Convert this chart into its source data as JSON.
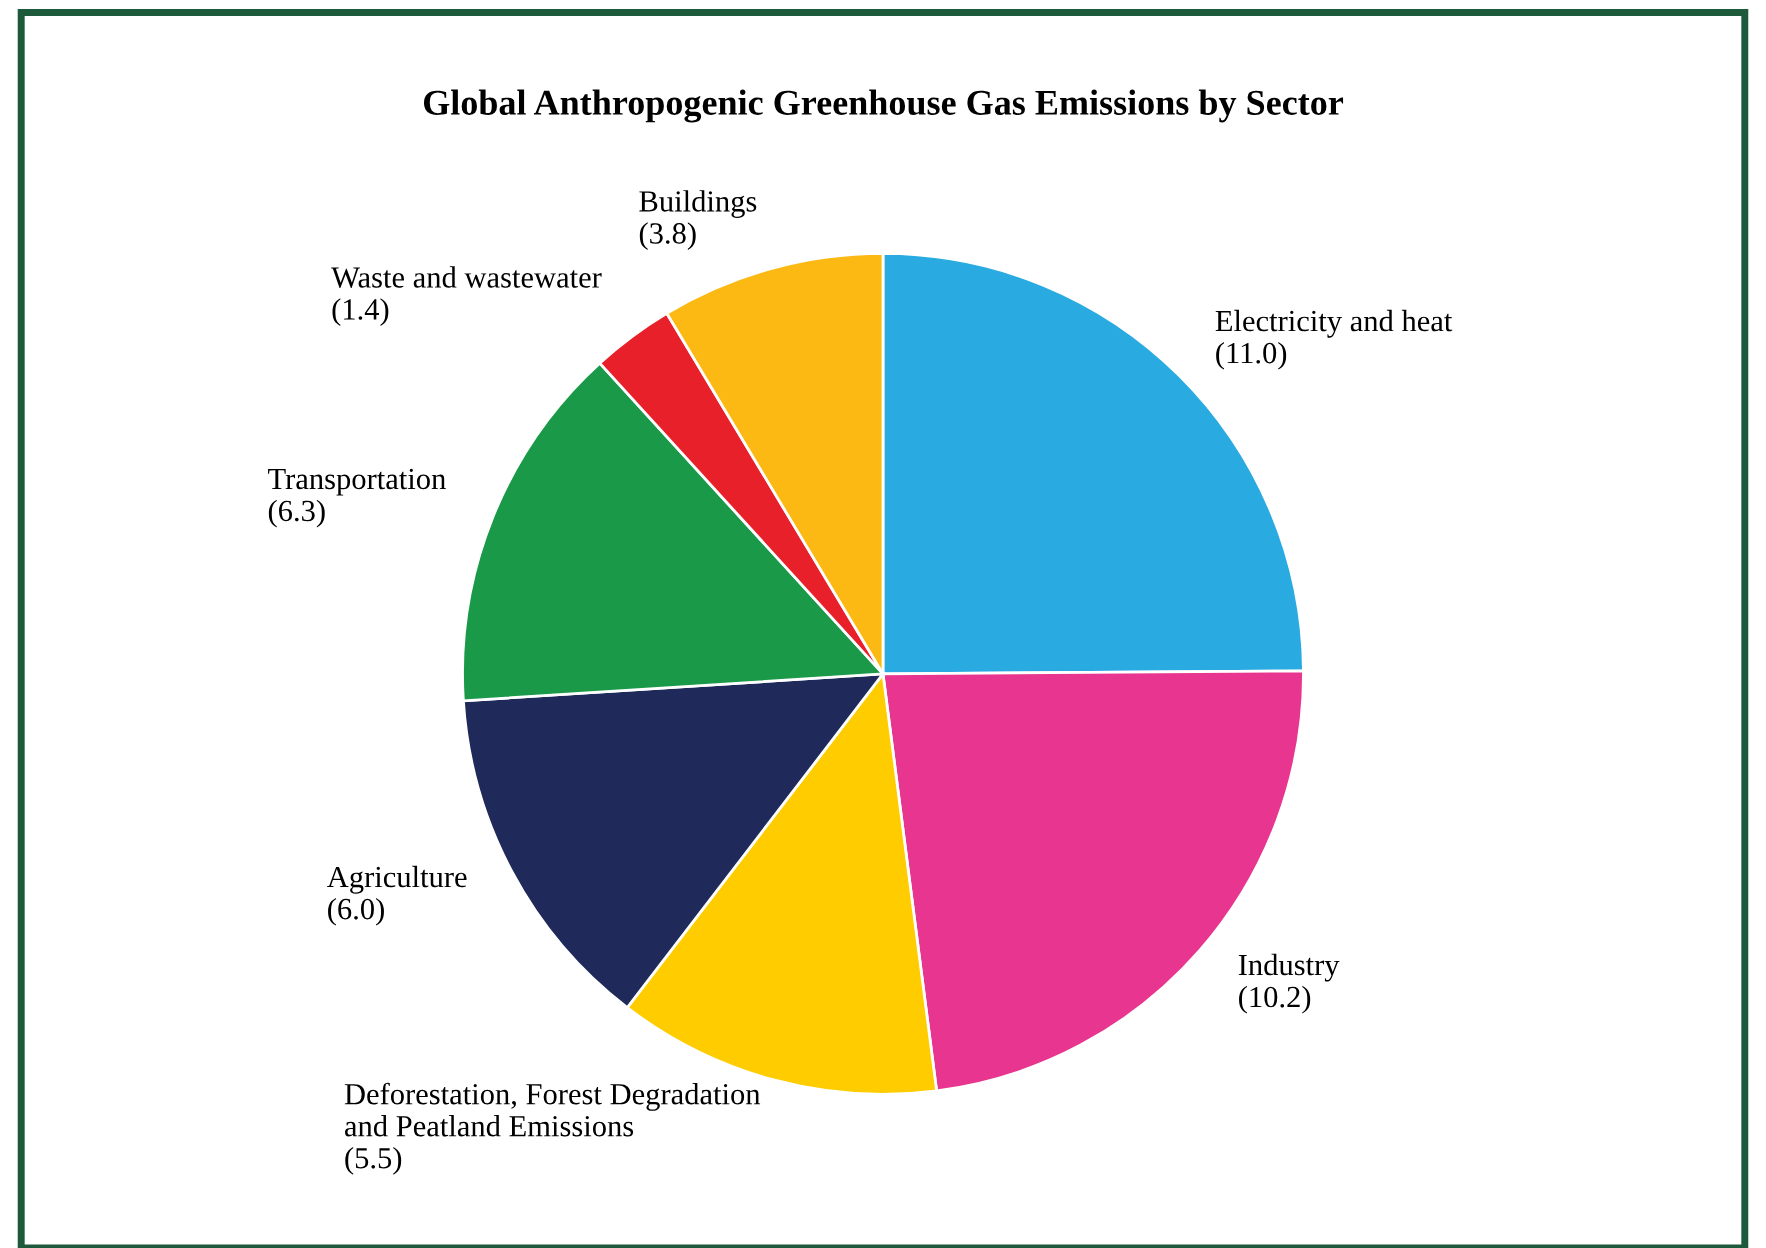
{
  "chart_data": {
    "type": "pie",
    "title": "Global Anthropogenic Greenhouse Gas Emissions by Sector",
    "categories": [
      "Electricity and heat",
      "Industry",
      "Deforestation, Forest Degradation\nand Peatland Emissions",
      "Agriculture",
      "Transportation",
      "Waste and wastewater",
      "Buildings"
    ],
    "values": [
      11.0,
      10.2,
      5.5,
      6.0,
      6.3,
      1.4,
      3.8
    ],
    "value_labels": [
      "(11.0)",
      "(10.2)",
      "(5.5)",
      "(6.0)",
      "(6.3)",
      "(1.4)",
      "(3.8)"
    ],
    "colors": [
      "#29abe2",
      "#e8358f",
      "#ffcc00",
      "#1f2a5a",
      "#1a9a48",
      "#e8202a",
      "#fdb913"
    ]
  }
}
